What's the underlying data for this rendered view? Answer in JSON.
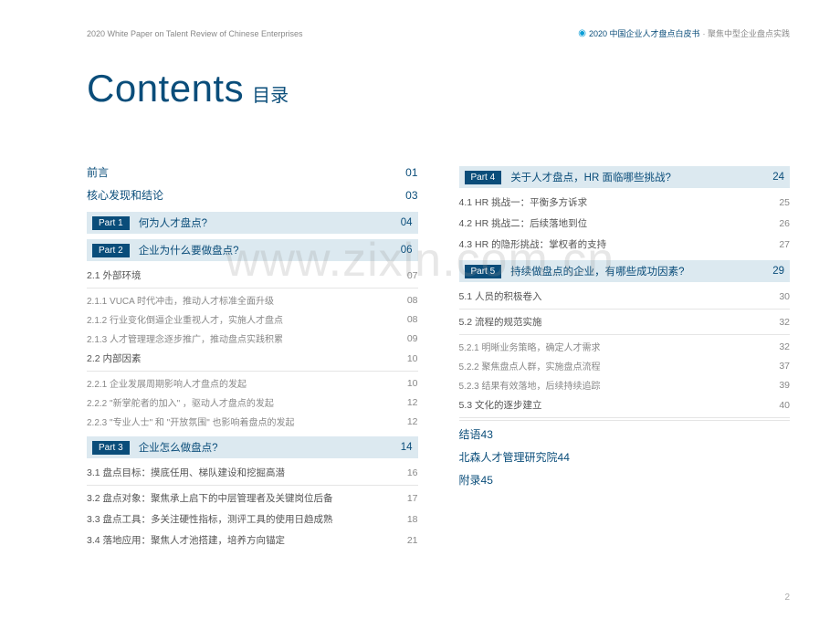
{
  "header": {
    "left": "2020 White Paper on Talent Review of Chinese Enterprises",
    "right_primary": "2020 中国企业人才盘点白皮书",
    "right_secondary": "· 聚焦中型企业盘点实践"
  },
  "title": {
    "en": "Contents",
    "zh": "目录"
  },
  "watermark": "www.zixin.com.cn",
  "page_number": "2",
  "left_column": {
    "top": [
      {
        "label": "前言",
        "num": "01"
      },
      {
        "label": "核心发现和结论",
        "num": "03"
      }
    ],
    "parts": [
      {
        "badge": "Part 1",
        "title": "何为人才盘点?",
        "num": "04",
        "children": []
      },
      {
        "badge": "Part 2",
        "title": "企业为什么要做盘点?",
        "num": "06",
        "children": [
          {
            "t": "row",
            "label": "2.1  外部环境",
            "num": "07",
            "sep": true
          },
          {
            "t": "sub",
            "label": "2.1.1 VUCA 时代冲击，推动人才标准全面升级",
            "num": "08"
          },
          {
            "t": "sub",
            "label": "2.1.2 行业变化倒逼企业重视人才，实施人才盘点",
            "num": "08"
          },
          {
            "t": "sub",
            "label": "2.1.3 人才管理理念逐步推广，推动盘点实践积累",
            "num": "09"
          },
          {
            "t": "row",
            "label": "2.2  内部因素",
            "num": "10",
            "sep": true
          },
          {
            "t": "sub",
            "label": "2.2.1 企业发展周期影响人才盘点的发起",
            "num": "10"
          },
          {
            "t": "sub",
            "label": "2.2.2 \"新掌舵者的加入\" ，驱动人才盘点的发起",
            "num": "12"
          },
          {
            "t": "sub",
            "label": "2.2.3 \"专业人士\" 和 \"开放氛围\" 也影响着盘点的发起",
            "num": "12"
          }
        ]
      },
      {
        "badge": "Part 3",
        "title": "企业怎么做盘点?",
        "num": "14",
        "children": [
          {
            "t": "row",
            "label": "3.1  盘点目标：摸底任用、梯队建设和挖掘高潜",
            "num": "16",
            "sep": true
          },
          {
            "t": "row",
            "label": "3.2  盘点对象：聚焦承上启下的中层管理者及关键岗位后备",
            "num": "17"
          },
          {
            "t": "row",
            "label": "3.3  盘点工具：多关注硬性指标，测评工具的使用日趋成熟",
            "num": "18"
          },
          {
            "t": "row",
            "label": "3.4  落地应用：聚焦人才池搭建，培养方向锚定",
            "num": "21"
          }
        ]
      }
    ]
  },
  "right_column": {
    "parts": [
      {
        "badge": "Part 4",
        "title": "关于人才盘点，HR 面临哪些挑战?",
        "num": "24",
        "children": [
          {
            "t": "row",
            "label": "4.1 HR 挑战一：平衡多方诉求",
            "num": "25"
          },
          {
            "t": "row",
            "label": "4.2 HR 挑战二：后续落地到位",
            "num": "26"
          },
          {
            "t": "row",
            "label": "4.3 HR 的隐形挑战：掌权者的支持",
            "num": "27"
          }
        ]
      },
      {
        "badge": "Part 5",
        "title": "持续做盘点的企业，有哪些成功因素?",
        "num": "29",
        "children": [
          {
            "t": "row",
            "label": "5.1  人员的积极卷入",
            "num": "30",
            "sep": true
          },
          {
            "t": "row",
            "label": "5.2  流程的规范实施",
            "num": "32",
            "sep": true
          },
          {
            "t": "sub",
            "label": "5.2.1 明晰业务策略，确定人才需求",
            "num": "32"
          },
          {
            "t": "sub",
            "label": "5.2.2 聚焦盘点人群，实施盘点流程",
            "num": "37"
          },
          {
            "t": "sub",
            "label": "5.2.3 结果有效落地，后续持续追踪",
            "num": "39"
          },
          {
            "t": "row",
            "label": "5.3  文化的逐步建立",
            "num": "40",
            "sep": true
          }
        ]
      }
    ],
    "end": [
      {
        "label": "结语",
        "num": "43"
      },
      {
        "label": "北森人才管理研究院",
        "num": "44"
      },
      {
        "label": "附录",
        "num": "45"
      }
    ]
  }
}
